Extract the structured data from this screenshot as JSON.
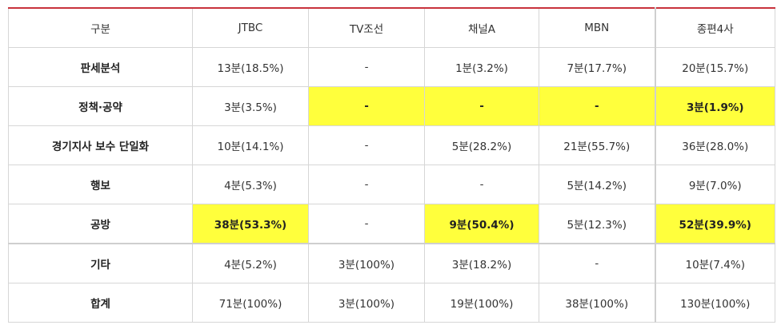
{
  "table": {
    "headers": [
      "구분",
      "JTBC",
      "TV조선",
      "채널A",
      "MBN",
      "종편4사"
    ],
    "rows": [
      {
        "label": "판세분석",
        "cells": [
          "13분(18.5%)",
          "-",
          "1분(3.2%)",
          "7분(17.7%)",
          "20분(15.7%)"
        ],
        "highlight": [
          false,
          false,
          false,
          false,
          false
        ]
      },
      {
        "label": "정책·공약",
        "cells": [
          "3분(3.5%)",
          "-",
          "-",
          "-",
          "3분(1.9%)"
        ],
        "highlight": [
          false,
          true,
          true,
          true,
          true
        ]
      },
      {
        "label": "경기지사 보수 단일화",
        "cells": [
          "10분(14.1%)",
          "-",
          "5분(28.2%)",
          "21분(55.7%)",
          "36분(28.0%)"
        ],
        "highlight": [
          false,
          false,
          false,
          false,
          false
        ]
      },
      {
        "label": "행보",
        "cells": [
          "4분(5.3%)",
          "-",
          "-",
          "5분(14.2%)",
          "9분(7.0%)"
        ],
        "highlight": [
          false,
          false,
          false,
          false,
          false
        ]
      },
      {
        "label": "공방",
        "cells": [
          "38분(53.3%)",
          "-",
          "9분(50.4%)",
          "5분(12.3%)",
          "52분(39.9%)"
        ],
        "highlight": [
          true,
          false,
          true,
          false,
          true
        ]
      },
      {
        "label": "기타",
        "cells": [
          "4분(5.2%)",
          "3분(100%)",
          "3분(18.2%)",
          "-",
          "10분(7.4%)"
        ],
        "highlight": [
          false,
          false,
          false,
          false,
          false
        ]
      },
      {
        "label": "합계",
        "cells": [
          "71분(100%)",
          "3분(100%)",
          "19분(100%)",
          "38분(100%)",
          "130분(100%)"
        ],
        "highlight": [
          false,
          false,
          false,
          false,
          false
        ]
      }
    ]
  },
  "colors": {
    "highlight": "#ffff3c",
    "top_rule": "#c8323c",
    "grid": "#d6d6d6"
  }
}
